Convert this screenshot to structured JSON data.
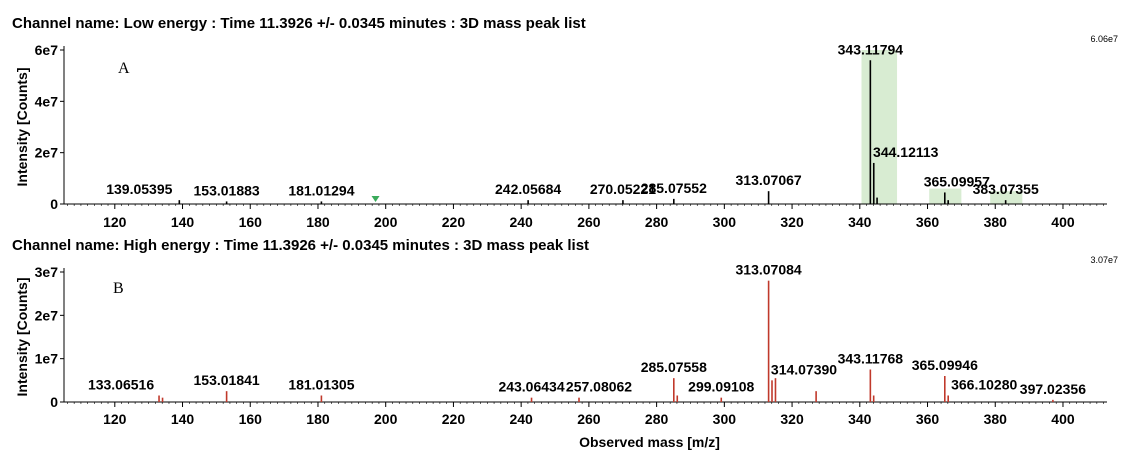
{
  "chart_data": [
    {
      "type": "bar",
      "title": "Channel name: Low energy : Time 11.3926 +/- 0.0345 minutes : 3D mass peak list",
      "panel_label": "A",
      "ylabel": "Intensity [Counts]",
      "xlabel": "",
      "xlim": [
        105,
        413
      ],
      "ylim": [
        0,
        60000000.0
      ],
      "yticks": [
        0,
        20000000.0,
        40000000.0,
        60000000.0
      ],
      "ytick_labels": [
        "0",
        "2e7",
        "4e7",
        "6e7"
      ],
      "xticks": [
        120,
        140,
        160,
        180,
        200,
        220,
        240,
        260,
        280,
        300,
        320,
        340,
        360,
        380,
        400
      ],
      "max_label": "6.06e7",
      "color": "#000000",
      "highlight_color": "#d8ecd2",
      "highlights": [
        {
          "x0": 340.5,
          "x1": 351.0,
          "top": 60000000.0
        },
        {
          "x0": 360.5,
          "x1": 370.0,
          "top": 6000000.0
        },
        {
          "x0": 378.5,
          "x1": 388.0,
          "top": 5000000.0
        }
      ],
      "marker": {
        "x": 197,
        "color": "#3aaa5a"
      },
      "peaks": [
        {
          "x": 139.05395,
          "y": 1500000.0
        },
        {
          "x": 153.01883,
          "y": 1000000.0
        },
        {
          "x": 181.01294,
          "y": 1000000.0
        },
        {
          "x": 242.05684,
          "y": 1500000.0
        },
        {
          "x": 270.05221,
          "y": 1500000.0
        },
        {
          "x": 285.07552,
          "y": 2000000.0
        },
        {
          "x": 313.07067,
          "y": 5000000.0
        },
        {
          "x": 343.11794,
          "y": 56000000.0
        },
        {
          "x": 344.12113,
          "y": 16000000.0
        },
        {
          "x": 345.1,
          "y": 2500000.0
        },
        {
          "x": 365.09957,
          "y": 4500000.0
        },
        {
          "x": 366.1,
          "y": 1500000.0
        },
        {
          "x": 383.07355,
          "y": 1500000.0
        }
      ],
      "labels": [
        {
          "text": "139.05395",
          "x": 139.05395,
          "y": 1500000.0
        },
        {
          "text": "153.01883",
          "x": 153.01883,
          "y": 1000000.0
        },
        {
          "text": "181.01294",
          "x": 181.01294,
          "y": 1000000.0
        },
        {
          "text": "242.05684",
          "x": 242.05684,
          "y": 1500000.0
        },
        {
          "text": "270.05221",
          "x": 270.05221,
          "y": 1500000.0
        },
        {
          "text": "285.07552",
          "x": 285.07552,
          "y": 2000000.0
        },
        {
          "text": "313.07067",
          "x": 313.07067,
          "y": 5000000.0
        },
        {
          "text": "343.11794",
          "x": 343.11794,
          "y": 56000000.0
        },
        {
          "text": "344.12113",
          "x": 344.12113,
          "y": 16000000.0
        },
        {
          "text": "365.09957",
          "x": 365.09957,
          "y": 4500000.0
        },
        {
          "text": "383.07355",
          "x": 383.07355,
          "y": 1500000.0
        }
      ]
    },
    {
      "type": "bar",
      "title": "Channel name: High energy : Time 11.3926 +/- 0.0345 minutes : 3D mass peak list",
      "panel_label": "B",
      "ylabel": "Intensity [Counts]",
      "xlabel": "Observed mass [m/z]",
      "xlim": [
        105,
        413
      ],
      "ylim": [
        0,
        30000000.0
      ],
      "yticks": [
        0,
        10000000.0,
        20000000.0,
        30000000.0
      ],
      "ytick_labels": [
        "0",
        "1e7",
        "2e7",
        "3e7"
      ],
      "xticks": [
        120,
        140,
        160,
        180,
        200,
        220,
        240,
        260,
        280,
        300,
        320,
        340,
        360,
        380,
        400
      ],
      "max_label": "3.07e7",
      "color": "#c0392b",
      "highlight_color": "#d8ecd2",
      "highlights": [],
      "peaks": [
        {
          "x": 133.06516,
          "y": 1500000.0
        },
        {
          "x": 134.1,
          "y": 1000000.0
        },
        {
          "x": 153.01841,
          "y": 2500000.0
        },
        {
          "x": 181.01305,
          "y": 1500000.0
        },
        {
          "x": 243.06434,
          "y": 1000000.0
        },
        {
          "x": 257.08062,
          "y": 1000000.0
        },
        {
          "x": 285.07558,
          "y": 5500000.0
        },
        {
          "x": 286.1,
          "y": 1500000.0
        },
        {
          "x": 299.09108,
          "y": 1000000.0
        },
        {
          "x": 313.07084,
          "y": 28000000.0
        },
        {
          "x": 314.0739,
          "y": 5000000.0
        },
        {
          "x": 315.1,
          "y": 5500000.0
        },
        {
          "x": 327.1,
          "y": 2500000.0
        },
        {
          "x": 343.11768,
          "y": 7500000.0
        },
        {
          "x": 344.1,
          "y": 1500000.0
        },
        {
          "x": 365.09946,
          "y": 6000000.0
        },
        {
          "x": 366.1028,
          "y": 1500000.0
        },
        {
          "x": 397.02356,
          "y": 500000.0
        }
      ],
      "labels": [
        {
          "text": "133.06516",
          "x": 133.06516,
          "y": 1500000.0
        },
        {
          "text": "153.01841",
          "x": 153.01841,
          "y": 2500000.0
        },
        {
          "text": "181.01305",
          "x": 181.01305,
          "y": 1500000.0
        },
        {
          "text": "243.06434",
          "x": 243.06434,
          "y": 1000000.0
        },
        {
          "text": "257.08062",
          "x": 257.08062,
          "y": 1000000.0
        },
        {
          "text": "285.07558",
          "x": 285.07558,
          "y": 5500000.0
        },
        {
          "text": "299.09108",
          "x": 299.09108,
          "y": 1000000.0
        },
        {
          "text": "313.07084",
          "x": 313.07084,
          "y": 28000000.0
        },
        {
          "text": "314.07390",
          "x": 314.0739,
          "y": 5000000.0
        },
        {
          "text": "343.11768",
          "x": 343.11768,
          "y": 7500000.0
        },
        {
          "text": "365.09946",
          "x": 365.09946,
          "y": 6000000.0
        },
        {
          "text": "366.10280",
          "x": 366.1028,
          "y": 1500000.0
        },
        {
          "text": "397.02356",
          "x": 397.02356,
          "y": 500000.0
        }
      ]
    }
  ]
}
